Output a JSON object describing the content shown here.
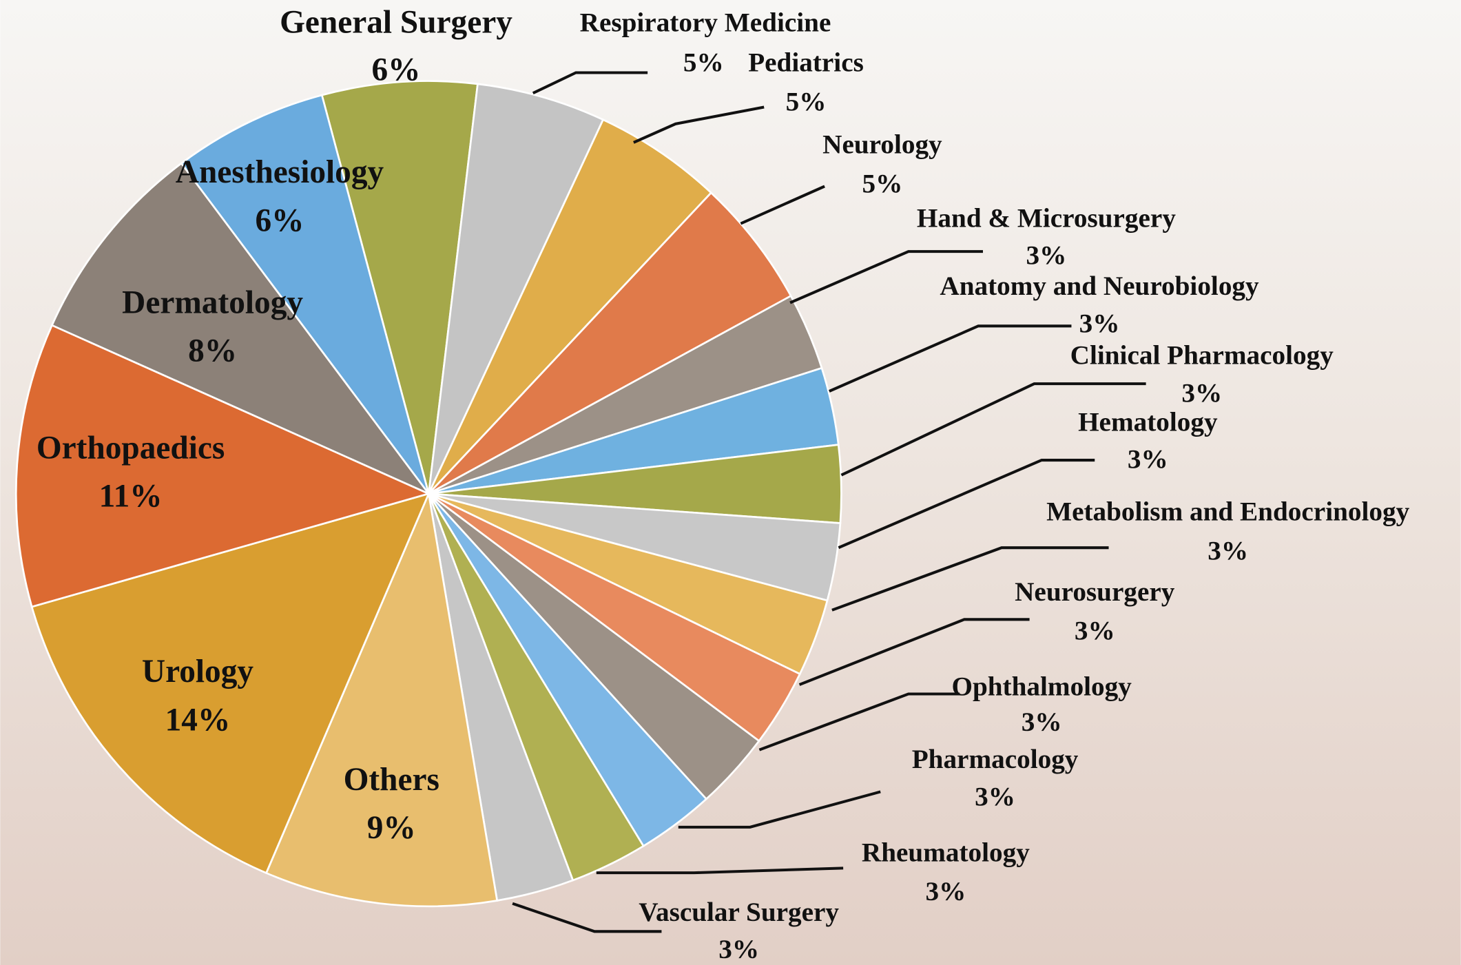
{
  "chart_data": {
    "type": "pie",
    "categories": [
      "General Surgery",
      "Respiratory Medicine",
      "Pediatrics",
      "Neurology",
      "Hand & Microsurgery",
      "Anatomy and Neurobiology",
      "Clinical Pharmacology",
      "Hematology",
      "Metabolism and Endocrinology",
      "Neurosurgery",
      "Ophthalmology",
      "Pharmacology",
      "Rheumatology",
      "Vascular Surgery",
      "Others",
      "Urology",
      "Orthopaedics",
      "Dermatology",
      "Anesthesiology"
    ],
    "values": [
      6,
      5,
      5,
      5,
      3,
      3,
      3,
      3,
      3,
      3,
      3,
      3,
      3,
      3,
      9,
      14,
      11,
      8,
      6
    ],
    "value_labels": [
      "6%",
      "5%",
      "5%",
      "5%",
      "3%",
      "3%",
      "3%",
      "3%",
      "3%",
      "3%",
      "3%",
      "3%",
      "3%",
      "3%",
      "9%",
      "14%",
      "11%",
      "8%",
      "6%"
    ],
    "colors": [
      "#a5a84a",
      "#c4c4c4",
      "#e0ad4a",
      "#e07a4a",
      "#9c9187",
      "#6fb1e0",
      "#a5a84a",
      "#c8c8c8",
      "#e6b85c",
      "#e88a5e",
      "#9c9187",
      "#7db7e6",
      "#b0b052",
      "#c6c6c6",
      "#e8be6e",
      "#d99e30",
      "#dc6a32",
      "#8c8178",
      "#6aabde"
    ]
  }
}
